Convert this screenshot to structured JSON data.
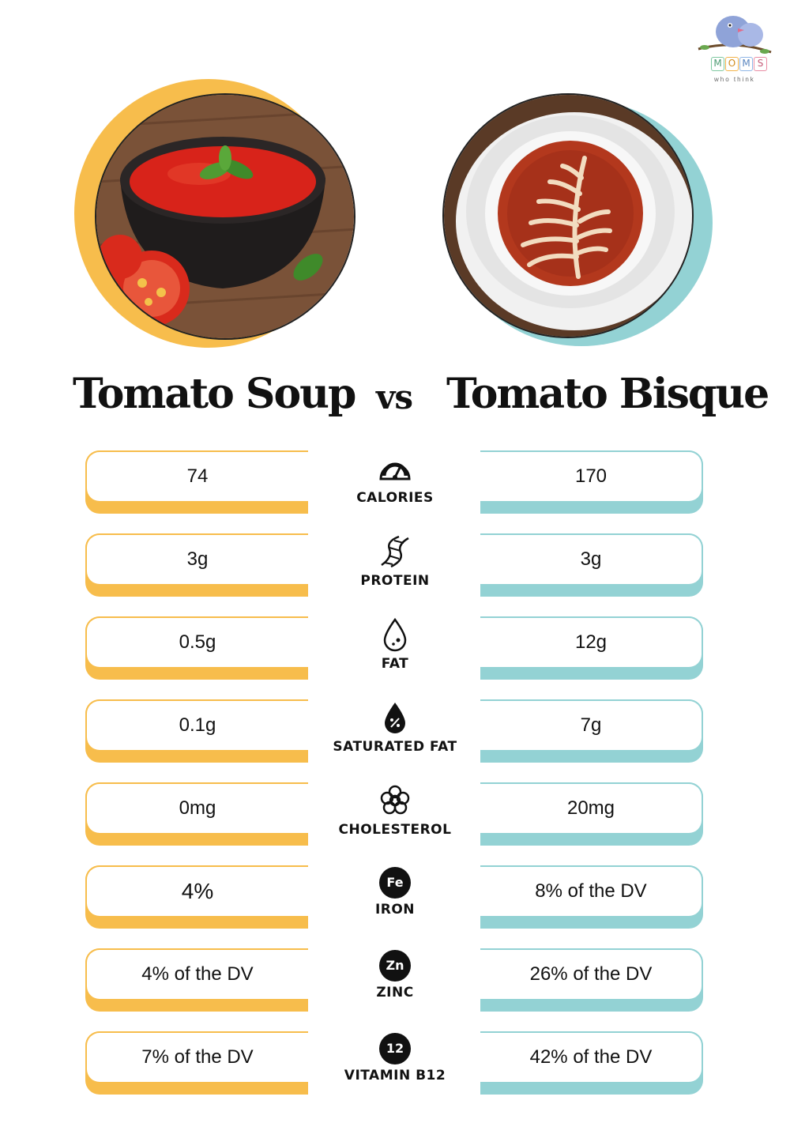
{
  "logo": {
    "letters": [
      "M",
      "O",
      "M",
      "S"
    ],
    "tagline": "who think"
  },
  "titles": {
    "left": "Tomato Soup",
    "vs": "vs",
    "right": "Tomato Bisque"
  },
  "colors": {
    "left_accent": "#f7bd4c",
    "right_accent": "#93d2d4"
  },
  "rows": [
    {
      "label": "CALORIES",
      "icon": "gauge-icon",
      "left": "74",
      "right": "170"
    },
    {
      "label": "PROTEIN",
      "icon": "dna-icon",
      "left": "3g",
      "right": "3g"
    },
    {
      "label": "FAT",
      "icon": "droplet-icon",
      "left": "0.5g",
      "right": "12g"
    },
    {
      "label": "SATURATED FAT",
      "icon": "percent-droplet-icon",
      "left": "0.1g",
      "right": "7g"
    },
    {
      "label": "CHOLESTEROL",
      "icon": "cholesterol-icon",
      "left": "0mg",
      "right": "20mg"
    },
    {
      "label": "IRON",
      "icon": "iron-badge-icon",
      "badge": "Fe",
      "left": "4%",
      "right": "8% of the DV"
    },
    {
      "label": "ZINC",
      "icon": "zinc-badge-icon",
      "badge": "Zn",
      "left": "4% of the DV",
      "right": "26% of the DV"
    },
    {
      "label": "VITAMIN B12",
      "icon": "b12-badge-icon",
      "badge": "12",
      "left": "7% of the DV",
      "right": "42% of the DV"
    }
  ]
}
